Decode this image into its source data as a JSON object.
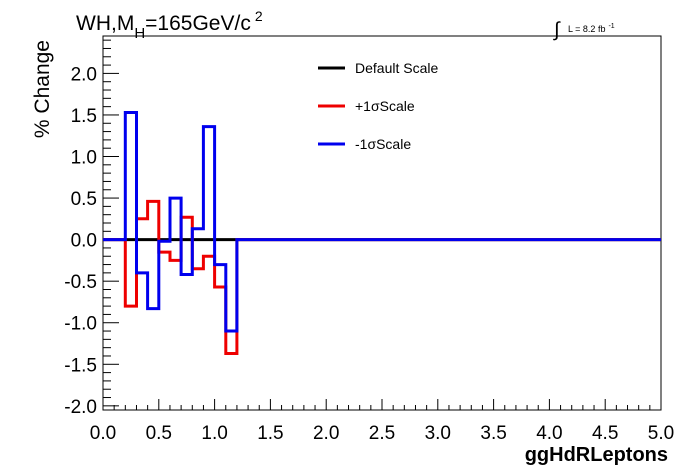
{
  "chart_data": {
    "type": "line",
    "title_parts": {
      "base": "WH,M",
      "sub": "H",
      "mid": "=165GeV/c",
      "sup": "2"
    },
    "lumi_parts": {
      "integral": "∫",
      "text": "L = 8.2 fb",
      "sup": "-1"
    },
    "xlabel": "ggHdRLeptons",
    "ylabel": "% Change",
    "xlim": [
      0,
      5
    ],
    "ylim": [
      -2.05,
      2.45
    ],
    "xticks": [
      "0.0",
      "0.5",
      "1.0",
      "1.5",
      "2.0",
      "2.5",
      "3.0",
      "3.5",
      "4.0",
      "4.5",
      "5.0"
    ],
    "yticks": [
      "-2.0",
      "-1.5",
      "-1.0",
      "-0.5",
      "0.0",
      "0.5",
      "1.0",
      "1.5",
      "2.0"
    ],
    "grid": false,
    "legend_position": "top-right",
    "bin_edges": [
      0.0,
      0.2,
      0.3,
      0.4,
      0.5,
      0.6,
      0.7,
      0.8,
      0.9,
      1.0,
      1.1,
      1.2,
      5.0
    ],
    "series": [
      {
        "name": "Default Scale",
        "color": "#000000",
        "values": [
          0,
          0,
          0,
          0,
          0,
          0,
          0,
          0,
          0,
          0,
          0,
          0
        ]
      },
      {
        "name": "+1σScale",
        "color": "#ee0000",
        "values": [
          0,
          -0.8,
          0.25,
          0.46,
          -0.15,
          -0.25,
          0.27,
          -0.35,
          -0.2,
          -0.57,
          -1.37,
          0
        ]
      },
      {
        "name": "-1σScale",
        "color": "#0000ee",
        "values": [
          0,
          1.53,
          -0.4,
          -0.83,
          -0.02,
          0.5,
          -0.42,
          0.13,
          1.36,
          -0.3,
          -1.1,
          0
        ]
      }
    ]
  }
}
